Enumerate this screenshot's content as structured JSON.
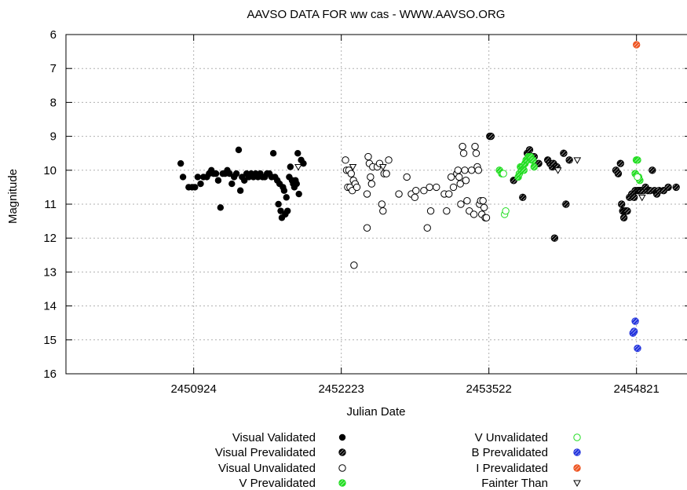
{
  "chart_data": {
    "type": "scatter",
    "title": "AAVSO DATA FOR ww cas - WWW.AAVSO.ORG",
    "xlabel": "Julian Date",
    "ylabel": "Magnitude",
    "xlim": [
      2449800,
      2455300
    ],
    "ylim": [
      16,
      6
    ],
    "y_inverted": true,
    "grid": true,
    "x_ticks": [
      2450924,
      2452223,
      2453522,
      2454821
    ],
    "y_ticks": [
      6,
      7,
      8,
      9,
      10,
      11,
      12,
      13,
      14,
      15,
      16
    ],
    "legend_position": "bottom",
    "series": [
      {
        "name": "Visual Validated",
        "color": "#000000",
        "marker": "filled-circle",
        "points": [
          [
            2450810,
            9.8
          ],
          [
            2450830,
            10.2
          ],
          [
            2450880,
            10.5
          ],
          [
            2450910,
            10.5
          ],
          [
            2450935,
            10.5
          ],
          [
            2450960,
            10.2
          ],
          [
            2450985,
            10.4
          ],
          [
            2451010,
            10.2
          ],
          [
            2451040,
            10.2
          ],
          [
            2451060,
            10.1
          ],
          [
            2451080,
            10.0
          ],
          [
            2451100,
            10.1
          ],
          [
            2451120,
            10.1
          ],
          [
            2451140,
            10.3
          ],
          [
            2451160,
            11.1
          ],
          [
            2451180,
            10.1
          ],
          [
            2451200,
            10.1
          ],
          [
            2451220,
            10.0
          ],
          [
            2451240,
            10.1
          ],
          [
            2451260,
            10.4
          ],
          [
            2451280,
            10.2
          ],
          [
            2451300,
            10.1
          ],
          [
            2451320,
            9.4
          ],
          [
            2451335,
            10.6
          ],
          [
            2451350,
            10.2
          ],
          [
            2451370,
            10.3
          ],
          [
            2451390,
            10.1
          ],
          [
            2451410,
            10.2
          ],
          [
            2451430,
            10.1
          ],
          [
            2451450,
            10.2
          ],
          [
            2451470,
            10.1
          ],
          [
            2451490,
            10.2
          ],
          [
            2451510,
            10.1
          ],
          [
            2451530,
            10.2
          ],
          [
            2451550,
            10.2
          ],
          [
            2451570,
            10.1
          ],
          [
            2451590,
            10.1
          ],
          [
            2451610,
            10.2
          ],
          [
            2451625,
            9.5
          ],
          [
            2451640,
            10.2
          ],
          [
            2451660,
            10.3
          ],
          [
            2451670,
            11.0
          ],
          [
            2451680,
            10.4
          ],
          [
            2451690,
            11.2
          ],
          [
            2451700,
            11.4
          ],
          [
            2451710,
            10.5
          ],
          [
            2451720,
            10.6
          ],
          [
            2451730,
            11.3
          ],
          [
            2451740,
            10.8
          ],
          [
            2451750,
            11.2
          ],
          [
            2451765,
            10.2
          ],
          [
            2451775,
            9.9
          ],
          [
            2451790,
            10.3
          ],
          [
            2451800,
            10.4
          ],
          [
            2451810,
            10.5
          ],
          [
            2451820,
            10.3
          ],
          [
            2451830,
            10.4
          ],
          [
            2451840,
            9.5
          ],
          [
            2451850,
            10.7
          ],
          [
            2451870,
            9.7
          ],
          [
            2451890,
            9.8
          ]
        ]
      },
      {
        "name": "Visual Prevalidated",
        "color": "#000000",
        "marker": "hatched-circle",
        "points": [
          [
            2453530,
            9.0
          ],
          [
            2453540,
            9.0
          ],
          [
            2453740,
            10.3
          ],
          [
            2453820,
            10.8
          ],
          [
            2453860,
            9.5
          ],
          [
            2453880,
            9.4
          ],
          [
            2453900,
            9.6
          ],
          [
            2453920,
            9.6
          ],
          [
            2453960,
            9.8
          ],
          [
            2454040,
            9.7
          ],
          [
            2454060,
            9.8
          ],
          [
            2454080,
            9.9
          ],
          [
            2454090,
            9.8
          ],
          [
            2454100,
            12.0
          ],
          [
            2454120,
            9.9
          ],
          [
            2454180,
            9.5
          ],
          [
            2454200,
            11.0
          ],
          [
            2454230,
            9.7
          ],
          [
            2454640,
            10.0
          ],
          [
            2454660,
            10.1
          ],
          [
            2454680,
            9.8
          ],
          [
            2454690,
            11.0
          ],
          [
            2454700,
            11.2
          ],
          [
            2454710,
            11.4
          ],
          [
            2454720,
            11.2
          ],
          [
            2454730,
            11.2
          ],
          [
            2454740,
            11.2
          ],
          [
            2454760,
            10.8
          ],
          [
            2454780,
            10.7
          ],
          [
            2454800,
            10.8
          ],
          [
            2454810,
            10.6
          ],
          [
            2454830,
            10.6
          ],
          [
            2454840,
            10.6
          ],
          [
            2454850,
            10.6
          ],
          [
            2454860,
            10.6
          ],
          [
            2454880,
            10.6
          ],
          [
            2454900,
            10.5
          ],
          [
            2454920,
            10.6
          ],
          [
            2454940,
            10.6
          ],
          [
            2454960,
            10.0
          ],
          [
            2454980,
            10.6
          ],
          [
            2455000,
            10.7
          ],
          [
            2455020,
            10.6
          ],
          [
            2455060,
            10.6
          ],
          [
            2455100,
            10.5
          ],
          [
            2455170,
            10.5
          ]
        ]
      },
      {
        "name": "Visual Unvalidated",
        "color": "#000000",
        "marker": "open-circle",
        "points": [
          [
            2452260,
            9.7
          ],
          [
            2452270,
            10.0
          ],
          [
            2452280,
            10.5
          ],
          [
            2452290,
            10.0
          ],
          [
            2452300,
            10.5
          ],
          [
            2452310,
            10.1
          ],
          [
            2452320,
            10.6
          ],
          [
            2452330,
            10.3
          ],
          [
            2452335,
            12.8
          ],
          [
            2452345,
            10.4
          ],
          [
            2452360,
            10.5
          ],
          [
            2452450,
            10.7
          ],
          [
            2452460,
            9.6
          ],
          [
            2452470,
            9.8
          ],
          [
            2452480,
            10.2
          ],
          [
            2452490,
            10.4
          ],
          [
            2452500,
            9.9
          ],
          [
            2452540,
            9.9
          ],
          [
            2452560,
            9.8
          ],
          [
            2452580,
            11.0
          ],
          [
            2452590,
            11.2
          ],
          [
            2452600,
            10.1
          ],
          [
            2452620,
            10.1
          ],
          [
            2452640,
            9.7
          ],
          [
            2452450,
            11.7
          ],
          [
            2452730,
            10.7
          ],
          [
            2452800,
            10.2
          ],
          [
            2452840,
            10.7
          ],
          [
            2452870,
            10.8
          ],
          [
            2452880,
            10.6
          ],
          [
            2452950,
            10.6
          ],
          [
            2452980,
            11.7
          ],
          [
            2453000,
            10.5
          ],
          [
            2453010,
            11.2
          ],
          [
            2453060,
            10.5
          ],
          [
            2453130,
            10.7
          ],
          [
            2453150,
            11.2
          ],
          [
            2453170,
            10.7
          ],
          [
            2453190,
            10.2
          ],
          [
            2453210,
            10.5
          ],
          [
            2453240,
            10.1
          ],
          [
            2453250,
            10.0
          ],
          [
            2453260,
            10.2
          ],
          [
            2453270,
            10.4
          ],
          [
            2453275,
            11.0
          ],
          [
            2453290,
            9.3
          ],
          [
            2453300,
            9.5
          ],
          [
            2453310,
            10.0
          ],
          [
            2453320,
            10.3
          ],
          [
            2453330,
            10.9
          ],
          [
            2453350,
            11.2
          ],
          [
            2453370,
            10.0
          ],
          [
            2453390,
            11.3
          ],
          [
            2453400,
            9.3
          ],
          [
            2453410,
            9.5
          ],
          [
            2453420,
            9.9
          ],
          [
            2453430,
            10.0
          ],
          [
            2453440,
            11.0
          ],
          [
            2453450,
            10.9
          ],
          [
            2453460,
            11.3
          ],
          [
            2453470,
            10.9
          ],
          [
            2453480,
            11.1
          ],
          [
            2453490,
            11.4
          ],
          [
            2453500,
            11.4
          ]
        ]
      },
      {
        "name": "V Prevalidated",
        "color": "#22dd22",
        "marker": "hatched-circle",
        "points": [
          [
            2453615,
            10.0
          ],
          [
            2453635,
            10.1
          ],
          [
            2453780,
            10.2
          ],
          [
            2453790,
            10.1
          ],
          [
            2453800,
            9.9
          ],
          [
            2453810,
            10.0
          ],
          [
            2453820,
            9.9
          ],
          [
            2453830,
            10.0
          ],
          [
            2453840,
            9.8
          ],
          [
            2453850,
            9.7
          ],
          [
            2453860,
            9.7
          ],
          [
            2453870,
            9.6
          ],
          [
            2453880,
            9.6
          ],
          [
            2453890,
            9.6
          ],
          [
            2453900,
            9.7
          ],
          [
            2453910,
            9.7
          ],
          [
            2453920,
            9.9
          ],
          [
            2454810,
            10.1
          ],
          [
            2454820,
            9.7
          ],
          [
            2454830,
            9.7
          ],
          [
            2454840,
            10.2
          ],
          [
            2454850,
            10.3
          ]
        ]
      },
      {
        "name": "V Unvalidated",
        "color": "#22dd22",
        "marker": "open-circle",
        "points": [
          [
            2453650,
            10.1
          ],
          [
            2453660,
            11.3
          ],
          [
            2453670,
            11.2
          ],
          [
            2454830,
            10.2
          ]
        ]
      },
      {
        "name": "B Prevalidated",
        "color": "#2233dd",
        "marker": "hatched-circle",
        "points": [
          [
            2454790,
            14.8
          ],
          [
            2454800,
            14.75
          ],
          [
            2454810,
            14.45
          ],
          [
            2454830,
            15.25
          ]
        ]
      },
      {
        "name": "I Prevalidated",
        "color": "#ee5522",
        "marker": "hatched-circle",
        "points": [
          [
            2454821,
            6.3
          ]
        ]
      },
      {
        "name": "Fainter Than",
        "color": "#000000",
        "marker": "triangle-down",
        "points": [
          [
            2451845,
            9.9
          ],
          [
            2452325,
            9.9
          ],
          [
            2452590,
            9.9
          ],
          [
            2454130,
            10.0
          ],
          [
            2454300,
            9.7
          ],
          [
            2454870,
            10.8
          ]
        ]
      }
    ]
  }
}
